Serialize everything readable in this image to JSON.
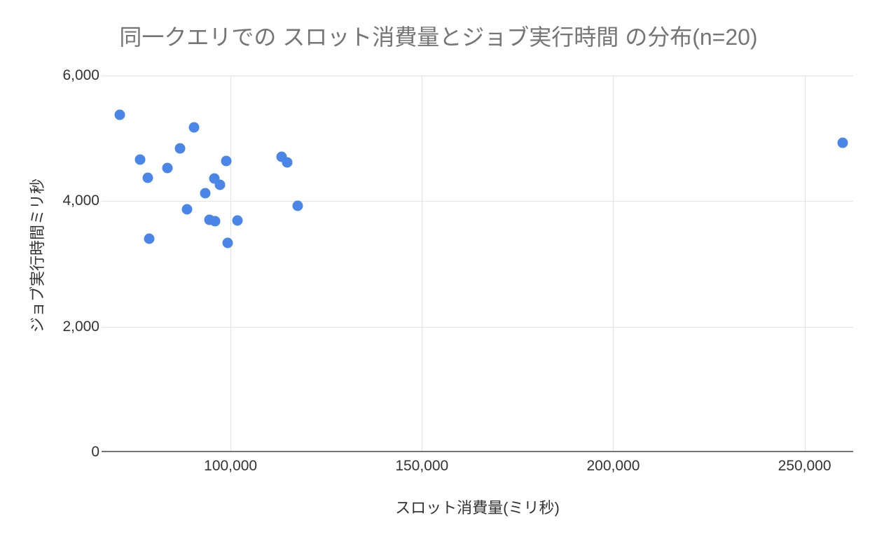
{
  "chart_data": {
    "type": "scatter",
    "title": "同一クエリでの スロット消費量とジョブ実行時間 の分布(n=20)",
    "xlabel": "スロット消費量(ミリ秒)",
    "ylabel": "ジョブ実行時間ミリ秒",
    "legend": "none",
    "grid": true,
    "xlim": [
      66300,
      262700
    ],
    "ylim": [
      0,
      6000
    ],
    "x_ticks": [
      {
        "value": 100000,
        "label": "100,000"
      },
      {
        "value": 150000,
        "label": "150,000"
      },
      {
        "value": 200000,
        "label": "200,000"
      },
      {
        "value": 250000,
        "label": "250,000"
      }
    ],
    "y_ticks": [
      {
        "value": 0,
        "label": "0"
      },
      {
        "value": 2000,
        "label": "2,000"
      },
      {
        "value": 4000,
        "label": "4,000"
      },
      {
        "value": 6000,
        "label": "6,000"
      }
    ],
    "points": [
      [
        71000,
        5380
      ],
      [
        76400,
        4660
      ],
      [
        78400,
        4370
      ],
      [
        78800,
        3400
      ],
      [
        83500,
        4530
      ],
      [
        86800,
        4840
      ],
      [
        88700,
        3870
      ],
      [
        90500,
        5175
      ],
      [
        93400,
        4125
      ],
      [
        94500,
        3700
      ],
      [
        95800,
        4360
      ],
      [
        96000,
        3680
      ],
      [
        97250,
        4260
      ],
      [
        98900,
        4640
      ],
      [
        99300,
        3335
      ],
      [
        101800,
        3690
      ],
      [
        113350,
        4705
      ],
      [
        114800,
        4620
      ],
      [
        117550,
        3925
      ],
      [
        260000,
        4930
      ]
    ],
    "colors": {
      "point_color": "#4a86e8",
      "grid_color": "#e3e3e3",
      "axis_line_color": "#757575",
      "title_color": "#757575",
      "label_color": "#333333"
    }
  }
}
